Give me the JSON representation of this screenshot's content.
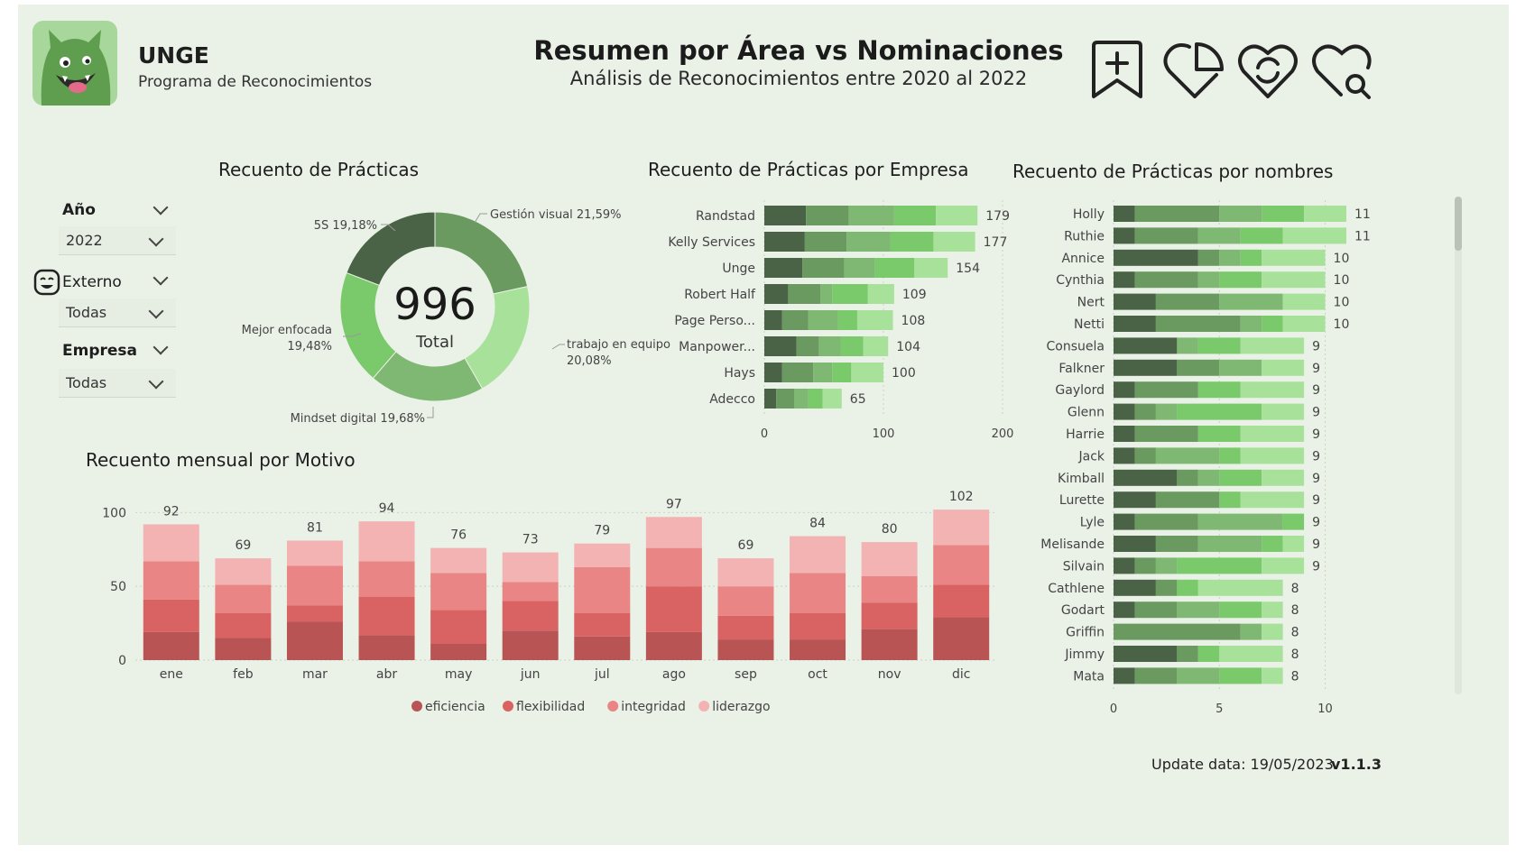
{
  "header": {
    "brand_name": "UNGE",
    "brand_subtitle": "Programa de Reconocimientos",
    "title": "Resumen por Área vs Nominaciones",
    "subtitle": "Análisis de Reconocimientos entre 2020 al 2022",
    "nav_icons": [
      "bookmark-add-icon",
      "heart-chart-icon",
      "heart-refresh-icon",
      "heart-search-icon"
    ]
  },
  "slicers": {
    "year": {
      "label": "Año",
      "value": "2022"
    },
    "external": {
      "label": "Externo",
      "value": "Todas"
    },
    "company": {
      "label": "Empresa",
      "value": "Todas"
    }
  },
  "donut": {
    "title": "Recuento de Prácticas",
    "total_value": "996",
    "total_label": "Total",
    "labels": {
      "gestion": "Gestión visual 21,59%",
      "trabajo_1": "trabajo en equipo",
      "trabajo_2": "20,08%",
      "mindset": "Mindset digital 19,68%",
      "mejor_1": "Mejor enfocada",
      "mejor_2": "19,48%",
      "s5": "5S 19,18%"
    }
  },
  "chart_data": [
    {
      "id": "practicas",
      "type": "pie",
      "title": "Recuento de Prácticas",
      "categories": [
        "Gestión visual",
        "trabajo en equipo",
        "Mindset digital",
        "Mejor enfocada",
        "5S"
      ],
      "values": [
        21.59,
        20.08,
        19.68,
        19.48,
        19.18
      ],
      "total": 996,
      "colors": [
        "#6a9a5f",
        "#a8e29a",
        "#7fb872",
        "#7ac96b",
        "#4a6346"
      ]
    },
    {
      "id": "empresa",
      "type": "bar",
      "orientation": "horizontal",
      "stacked": true,
      "title": "Recuento de Prácticas por Empresa",
      "categories": [
        "Randstad",
        "Kelly Services",
        "Unge",
        "Robert Half",
        "Page Perso...",
        "Manpower...",
        "Hays",
        "Adecco"
      ],
      "totals": [
        179,
        177,
        154,
        109,
        108,
        104,
        100,
        65
      ],
      "series": [
        {
          "values": [
            35,
            34,
            32,
            20,
            15,
            27,
            15,
            10
          ]
        },
        {
          "values": [
            36,
            35,
            35,
            27,
            22,
            19,
            26,
            15
          ]
        },
        {
          "values": [
            38,
            37,
            26,
            10,
            25,
            18,
            16,
            12
          ]
        },
        {
          "values": [
            35,
            36,
            33,
            30,
            16,
            19,
            16,
            12
          ]
        },
        {
          "values": [
            35,
            35,
            28,
            22,
            30,
            21,
            27,
            16
          ]
        }
      ],
      "colors": [
        "#4a6346",
        "#6a9a5f",
        "#7fb872",
        "#7ac96b",
        "#a8e29a"
      ],
      "xticks": [
        0,
        100,
        200
      ],
      "xlim": [
        0,
        200
      ]
    },
    {
      "id": "nombres",
      "type": "bar",
      "orientation": "horizontal",
      "stacked": true,
      "title": "Recuento de Prácticas por nombres",
      "categories": [
        "Holly",
        "Ruthie",
        "Annice",
        "Cynthia",
        "Nert",
        "Netti",
        "Consuela",
        "Falkner",
        "Gaylord",
        "Glenn",
        "Harrie",
        "Jack",
        "Kimball",
        "Lurette",
        "Lyle",
        "Melisande",
        "Silvain",
        "Cathlene",
        "Godart",
        "Griffin",
        "Jimmy",
        "Mata"
      ],
      "totals": [
        11,
        11,
        10,
        10,
        10,
        10,
        9,
        9,
        9,
        9,
        9,
        9,
        9,
        9,
        9,
        9,
        9,
        8,
        8,
        8,
        8,
        8
      ],
      "series": [
        {
          "values": [
            1,
            1,
            4,
            1,
            2,
            2,
            3,
            3,
            1,
            1,
            1,
            1,
            3,
            2,
            1,
            2,
            1,
            2,
            1,
            0,
            3,
            1
          ]
        },
        {
          "values": [
            4,
            3,
            1,
            3,
            3,
            4,
            0,
            2,
            3,
            1,
            3,
            1,
            1,
            3,
            3,
            2,
            1,
            1,
            2,
            6,
            1,
            2
          ]
        },
        {
          "values": [
            2,
            2,
            1,
            1,
            3,
            1,
            1,
            2,
            0,
            1,
            0,
            3,
            1,
            0,
            4,
            3,
            1,
            0,
            2,
            1,
            0,
            2
          ]
        },
        {
          "values": [
            2,
            2,
            1,
            2,
            0,
            1,
            2,
            0,
            2,
            4,
            2,
            1,
            2,
            1,
            1,
            1,
            4,
            1,
            2,
            0,
            1,
            2
          ]
        },
        {
          "values": [
            2,
            3,
            3,
            3,
            2,
            2,
            3,
            2,
            3,
            2,
            3,
            3,
            2,
            3,
            0,
            1,
            2,
            4,
            1,
            1,
            3,
            1
          ]
        }
      ],
      "colors": [
        "#4a6346",
        "#6a9a5f",
        "#7fb872",
        "#7ac96b",
        "#a8e29a"
      ],
      "xticks": [
        0,
        5,
        10
      ],
      "xlim": [
        0,
        11
      ]
    },
    {
      "id": "mensual",
      "type": "bar",
      "stacked": true,
      "title": "Recuento mensual por Motivo",
      "categories": [
        "ene",
        "feb",
        "mar",
        "abr",
        "may",
        "jun",
        "jul",
        "ago",
        "sep",
        "oct",
        "nov",
        "dic"
      ],
      "totals": [
        92,
        69,
        81,
        94,
        76,
        73,
        79,
        97,
        69,
        84,
        80,
        102
      ],
      "series": [
        {
          "name": "eficiencia",
          "values": [
            19,
            15,
            26,
            17,
            11,
            20,
            16,
            19,
            14,
            14,
            21,
            29
          ]
        },
        {
          "name": "flexibilidad",
          "values": [
            22,
            17,
            11,
            26,
            23,
            20,
            16,
            31,
            16,
            18,
            18,
            22
          ]
        },
        {
          "name": "integridad",
          "values": [
            26,
            19,
            27,
            24,
            25,
            13,
            31,
            26,
            20,
            27,
            18,
            27
          ]
        },
        {
          "name": "liderazgo",
          "values": [
            25,
            18,
            17,
            27,
            17,
            20,
            16,
            21,
            19,
            25,
            23,
            24
          ]
        }
      ],
      "colors": [
        "#b95455",
        "#d96262",
        "#ea8585",
        "#f4b3b3"
      ],
      "yticks": [
        0,
        50,
        100
      ],
      "ylim": [
        0,
        110
      ],
      "legend": "bottom"
    }
  ],
  "footer": {
    "update_text": "Update data: 19/05/2023",
    "version": "v1.1.3"
  }
}
